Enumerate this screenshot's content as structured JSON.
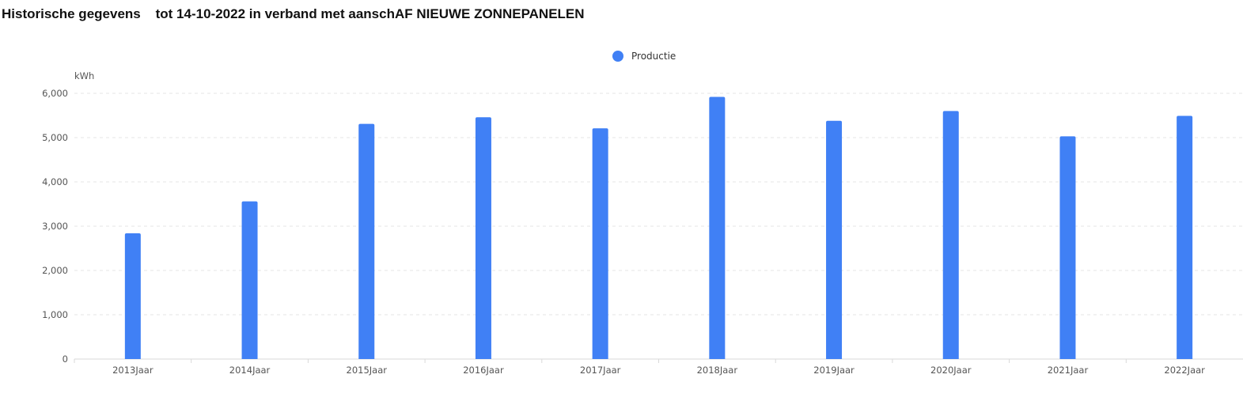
{
  "title": "Historische gegevens    tot 14-10-2022 in verband met aanschAF NIEUWE ZONNEPANELEN",
  "chart_data": {
    "type": "bar",
    "title": "",
    "xlabel": "",
    "ylabel": "kWh",
    "categories": [
      "2013Jaar",
      "2014Jaar",
      "2015Jaar",
      "2016Jaar",
      "2017Jaar",
      "2018Jaar",
      "2019Jaar",
      "2020Jaar",
      "2021Jaar",
      "2022Jaar"
    ],
    "series": [
      {
        "name": "Productie",
        "color": "#4080f5",
        "values": [
          2840,
          3560,
          5310,
          5460,
          5210,
          5920,
          5380,
          5600,
          5030,
          5490
        ]
      }
    ],
    "ylim": [
      0,
      6000
    ],
    "yticks": [
      0,
      1000,
      2000,
      3000,
      4000,
      5000,
      6000
    ],
    "ytick_labels": [
      "0",
      "1,000",
      "2,000",
      "3,000",
      "4,000",
      "5,000",
      "6,000"
    ],
    "grid": true,
    "legend_position": "top-center"
  }
}
